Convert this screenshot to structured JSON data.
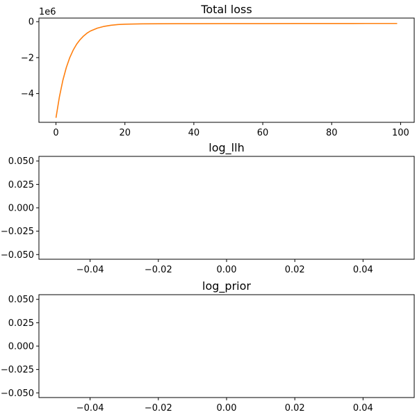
{
  "chart_data": [
    {
      "type": "line",
      "title": "Total loss",
      "xlabel": "",
      "ylabel": "",
      "y_offset_label": "1e6",
      "xlim": [
        -4.95,
        103.95
      ],
      "ylim": [
        -5.6,
        0.2
      ],
      "xticks": [
        0,
        20,
        40,
        60,
        80,
        100
      ],
      "xtick_labels": [
        "0",
        "20",
        "40",
        "60",
        "80",
        "100"
      ],
      "yticks": [
        0,
        -2,
        -4
      ],
      "ytick_labels": [
        "0",
        "−2",
        "−4"
      ],
      "grid": false,
      "series": [
        {
          "color": "#ff7f0e",
          "x": [
            0,
            1,
            2,
            3,
            4,
            5,
            6,
            7,
            8,
            9,
            10,
            12,
            14,
            16,
            18,
            20,
            25,
            30,
            40,
            50,
            60,
            70,
            80,
            90,
            99
          ],
          "y": [
            -5.35,
            -4.18,
            -3.26,
            -2.55,
            -2.0,
            -1.58,
            -1.25,
            -1.0,
            -0.8,
            -0.64,
            -0.52,
            -0.36,
            -0.26,
            -0.2,
            -0.16,
            -0.14,
            -0.12,
            -0.115,
            -0.11,
            -0.108,
            -0.106,
            -0.104,
            -0.102,
            -0.1,
            -0.1
          ]
        }
      ]
    },
    {
      "type": "line",
      "title": "log_llh",
      "xlabel": "",
      "ylabel": "",
      "xlim": [
        -0.055,
        0.055
      ],
      "ylim": [
        -0.055,
        0.055
      ],
      "xticks": [
        -0.04,
        -0.02,
        0.0,
        0.02,
        0.04
      ],
      "xtick_labels": [
        "−0.04",
        "−0.02",
        "0.00",
        "0.02",
        "0.04"
      ],
      "yticks": [
        0.05,
        0.025,
        0.0,
        -0.025,
        -0.05
      ],
      "ytick_labels": [
        "0.050",
        "0.025",
        "0.000",
        "−0.025",
        "−0.050"
      ],
      "grid": false,
      "series": []
    },
    {
      "type": "line",
      "title": "log_prior",
      "xlabel": "",
      "ylabel": "",
      "xlim": [
        -0.055,
        0.055
      ],
      "ylim": [
        -0.055,
        0.055
      ],
      "xticks": [
        -0.04,
        -0.02,
        0.0,
        0.02,
        0.04
      ],
      "xtick_labels": [
        "−0.04",
        "−0.02",
        "0.00",
        "0.02",
        "0.04"
      ],
      "yticks": [
        0.05,
        0.025,
        0.0,
        -0.025,
        -0.05
      ],
      "ytick_labels": [
        "0.050",
        "0.025",
        "0.000",
        "−0.025",
        "−0.050"
      ],
      "grid": false,
      "series": []
    }
  ]
}
